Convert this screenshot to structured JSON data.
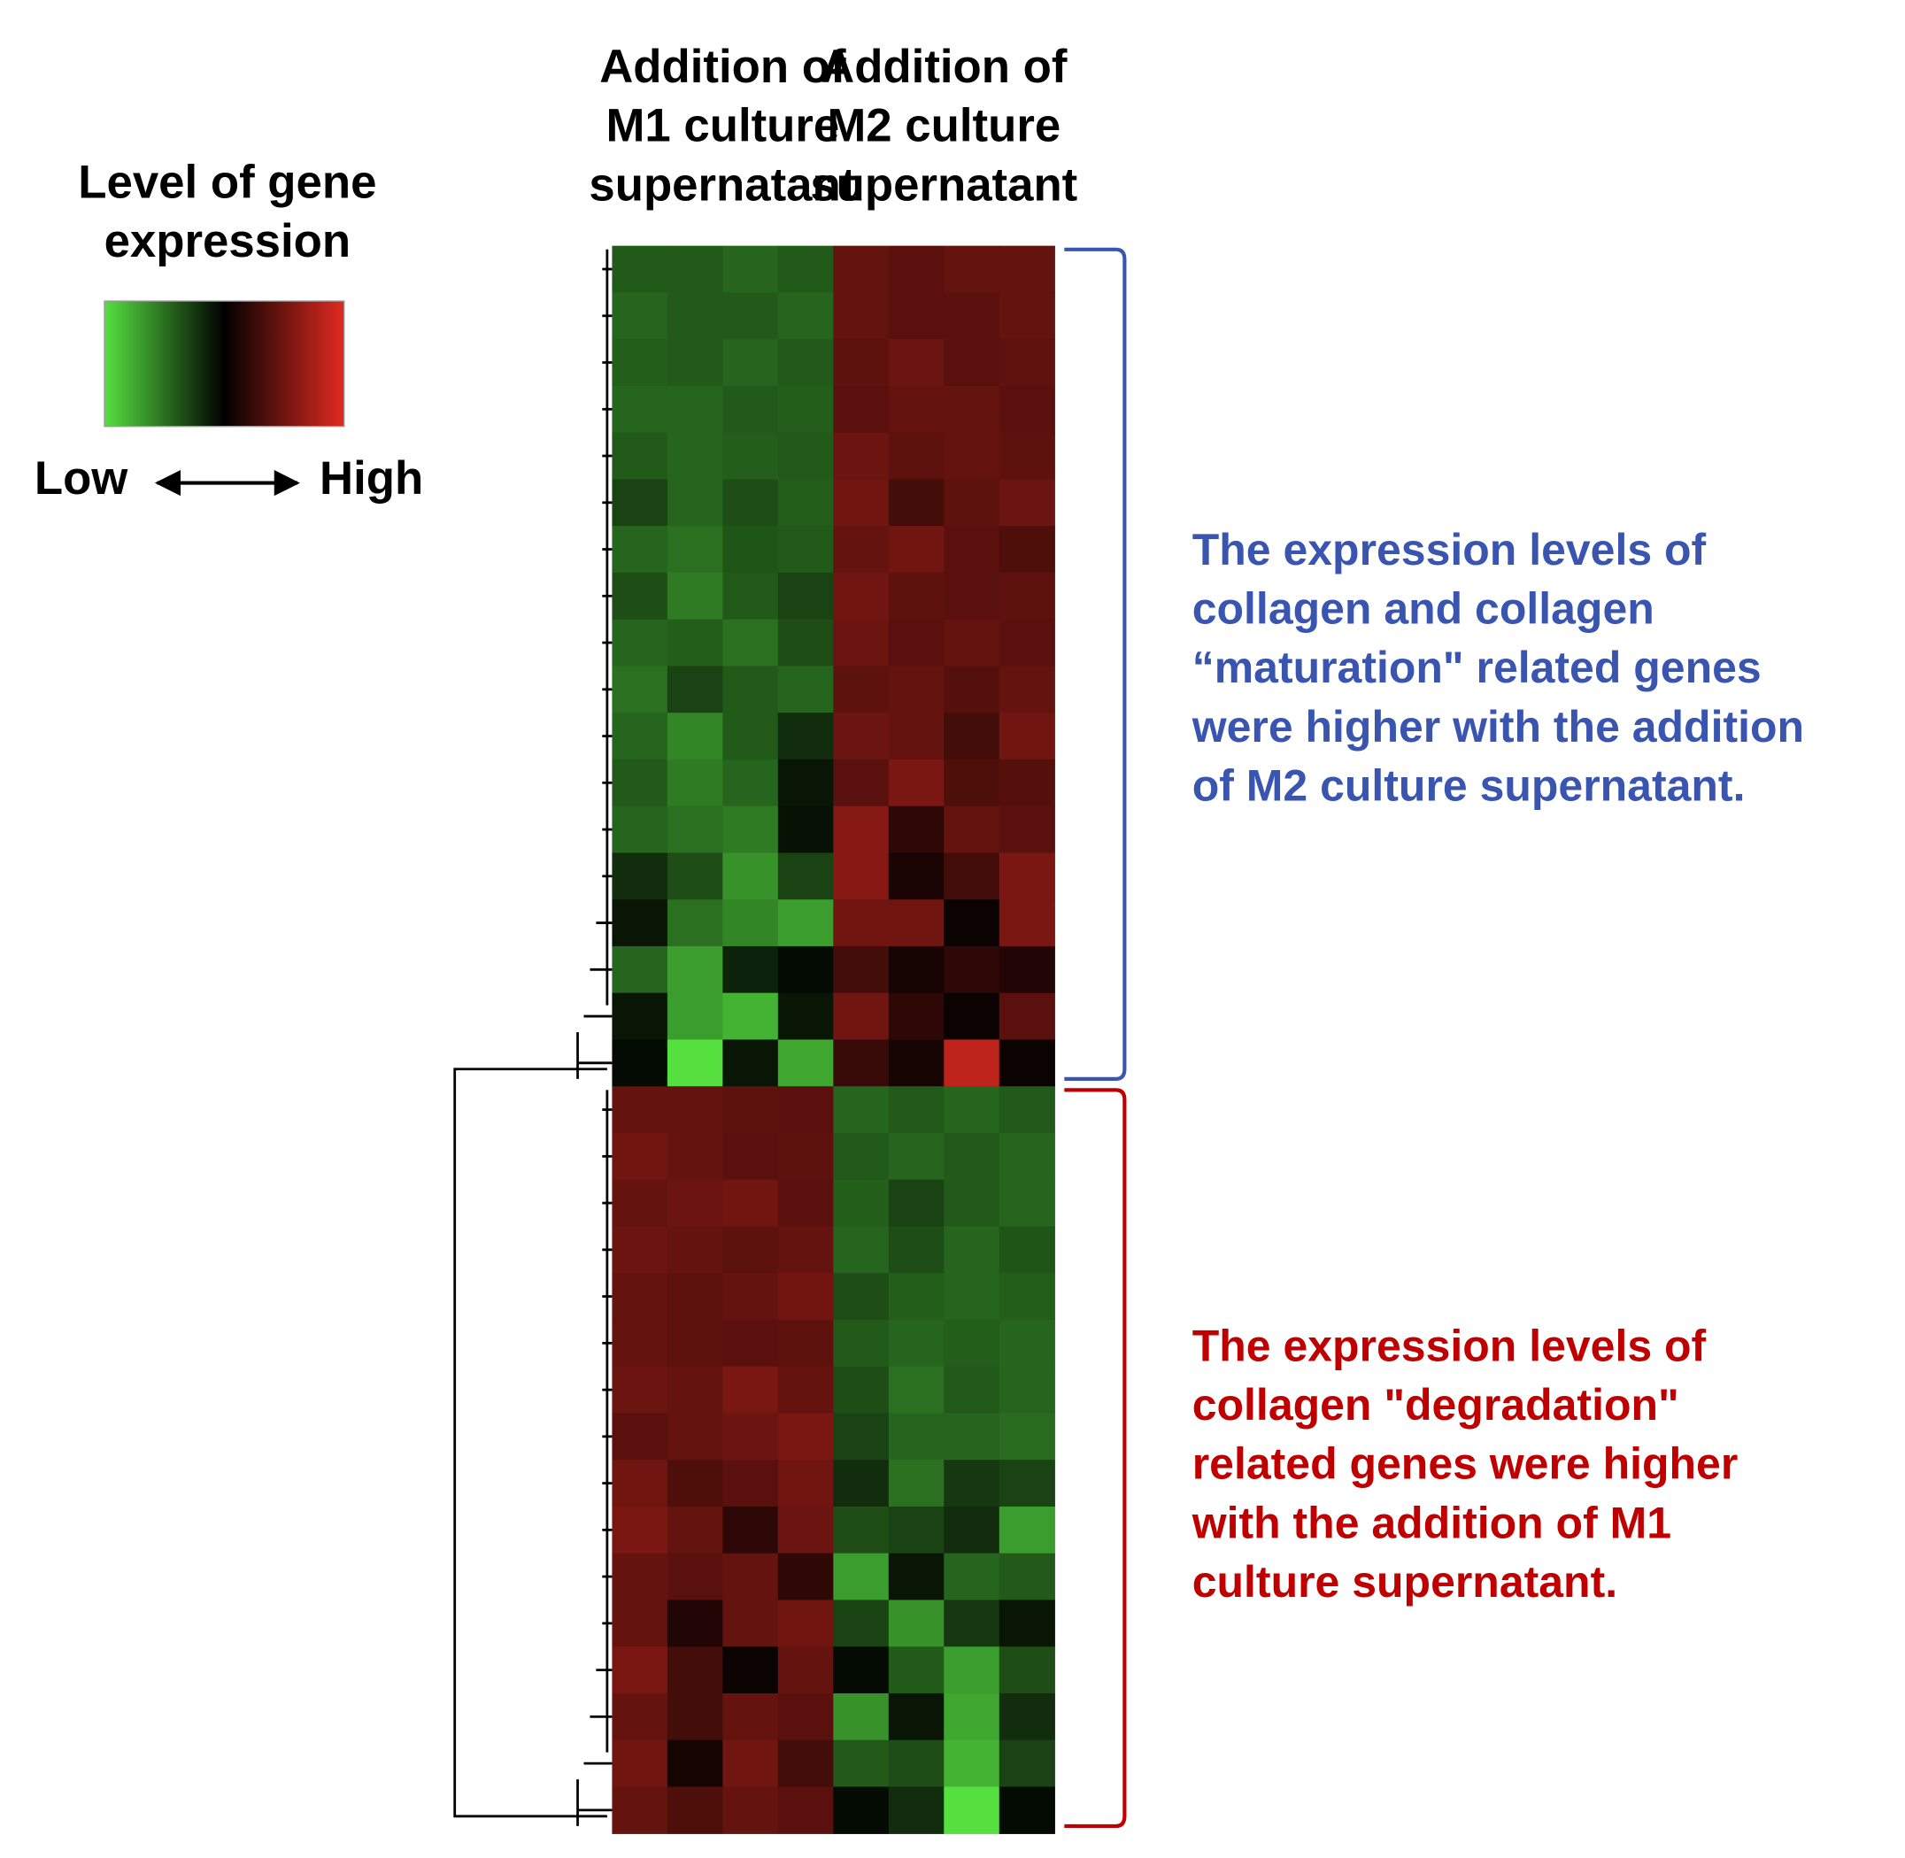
{
  "chart_data": {
    "type": "heatmap",
    "legend_title": [
      "Level of gene",
      "expression"
    ],
    "colorscale": [
      "#55e040",
      "#000000",
      "#e02a20"
    ],
    "zlim": [
      -1,
      1
    ],
    "low_label": "Low",
    "low_color": "#00b050",
    "high_label": "High",
    "high_color": "#ff0000",
    "column_groups": [
      {
        "lines": [
          "Addition of",
          "M1 culture",
          "supernatant"
        ]
      },
      {
        "lines": [
          "Addition of",
          "M2 culture",
          "supernatant"
        ]
      }
    ],
    "clusters": [
      {
        "color": "#3a55b0",
        "rows": 18,
        "lines": [
          "The expression levels of",
          "collagen and collagen",
          "“maturation\" related genes",
          "were higher with the addition",
          "of M2 culture supernatant."
        ]
      },
      {
        "color": "#c00000",
        "rows": 16,
        "lines": [
          "The expression levels of",
          "collagen \"degradation\"",
          "related genes were higher",
          "with the addition of M1",
          "culture supernatant."
        ]
      }
    ],
    "values": [
      [
        -0.4,
        -0.4,
        -0.45,
        -0.4,
        0.45,
        0.4,
        0.45,
        0.45
      ],
      [
        -0.45,
        -0.4,
        -0.4,
        -0.45,
        0.45,
        0.4,
        0.4,
        0.45
      ],
      [
        -0.42,
        -0.4,
        -0.45,
        -0.4,
        0.42,
        0.48,
        0.4,
        0.43
      ],
      [
        -0.45,
        -0.45,
        -0.4,
        -0.42,
        0.4,
        0.45,
        0.45,
        0.4
      ],
      [
        -0.4,
        -0.45,
        -0.42,
        -0.4,
        0.48,
        0.42,
        0.45,
        0.42
      ],
      [
        -0.3,
        -0.45,
        -0.35,
        -0.42,
        0.5,
        0.3,
        0.42,
        0.48
      ],
      [
        -0.45,
        -0.5,
        -0.38,
        -0.4,
        0.45,
        0.5,
        0.4,
        0.35
      ],
      [
        -0.35,
        -0.55,
        -0.4,
        -0.3,
        0.5,
        0.42,
        0.4,
        0.42
      ],
      [
        -0.45,
        -0.42,
        -0.5,
        -0.35,
        0.48,
        0.4,
        0.45,
        0.4
      ],
      [
        -0.5,
        -0.3,
        -0.4,
        -0.45,
        0.42,
        0.45,
        0.38,
        0.45
      ],
      [
        -0.45,
        -0.6,
        -0.4,
        -0.2,
        0.48,
        0.45,
        0.3,
        0.5
      ],
      [
        -0.4,
        -0.55,
        -0.45,
        -0.1,
        0.4,
        0.55,
        0.35,
        0.38
      ],
      [
        -0.45,
        -0.5,
        -0.55,
        -0.08,
        0.6,
        0.2,
        0.45,
        0.4
      ],
      [
        -0.2,
        -0.35,
        -0.65,
        -0.3,
        0.6,
        0.12,
        0.3,
        0.55
      ],
      [
        -0.1,
        -0.5,
        -0.6,
        -0.7,
        0.5,
        0.5,
        0.05,
        0.55
      ],
      [
        -0.45,
        -0.7,
        -0.15,
        -0.05,
        0.3,
        0.1,
        0.2,
        0.15
      ],
      [
        -0.1,
        -0.7,
        -0.8,
        -0.1,
        0.5,
        0.2,
        0.05,
        0.4
      ],
      [
        -0.05,
        -1,
        -0.1,
        -0.75,
        0.25,
        0.1,
        0.85,
        0.05
      ],
      [
        0.45,
        0.45,
        0.42,
        0.4,
        -0.45,
        -0.4,
        -0.45,
        -0.4
      ],
      [
        0.5,
        0.45,
        0.4,
        0.42,
        -0.4,
        -0.45,
        -0.4,
        -0.45
      ],
      [
        0.45,
        0.48,
        0.5,
        0.4,
        -0.42,
        -0.3,
        -0.4,
        -0.45
      ],
      [
        0.48,
        0.45,
        0.42,
        0.45,
        -0.45,
        -0.35,
        -0.45,
        -0.38
      ],
      [
        0.45,
        0.42,
        0.45,
        0.5,
        -0.35,
        -0.42,
        -0.45,
        -0.42
      ],
      [
        0.45,
        0.42,
        0.4,
        0.42,
        -0.4,
        -0.45,
        -0.42,
        -0.45
      ],
      [
        0.48,
        0.45,
        0.55,
        0.45,
        -0.35,
        -0.5,
        -0.4,
        -0.45
      ],
      [
        0.4,
        0.45,
        0.48,
        0.55,
        -0.3,
        -0.45,
        -0.45,
        -0.48
      ],
      [
        0.5,
        0.35,
        0.4,
        0.5,
        -0.2,
        -0.5,
        -0.25,
        -0.3
      ],
      [
        0.55,
        0.45,
        0.2,
        0.48,
        -0.35,
        -0.3,
        -0.2,
        -0.7
      ],
      [
        0.45,
        0.4,
        0.45,
        0.2,
        -0.7,
        -0.1,
        -0.45,
        -0.4
      ],
      [
        0.45,
        0.15,
        0.45,
        0.5,
        -0.3,
        -0.65,
        -0.25,
        -0.1
      ],
      [
        0.55,
        0.3,
        0.05,
        0.45,
        -0.05,
        -0.4,
        -0.7,
        -0.35
      ],
      [
        0.45,
        0.3,
        0.45,
        0.4,
        -0.65,
        -0.1,
        -0.75,
        -0.2
      ],
      [
        0.5,
        0.1,
        0.5,
        0.3,
        -0.4,
        -0.35,
        -0.8,
        -0.3
      ],
      [
        0.45,
        0.35,
        0.45,
        0.4,
        -0.05,
        -0.2,
        -1,
        -0.05
      ]
    ]
  }
}
